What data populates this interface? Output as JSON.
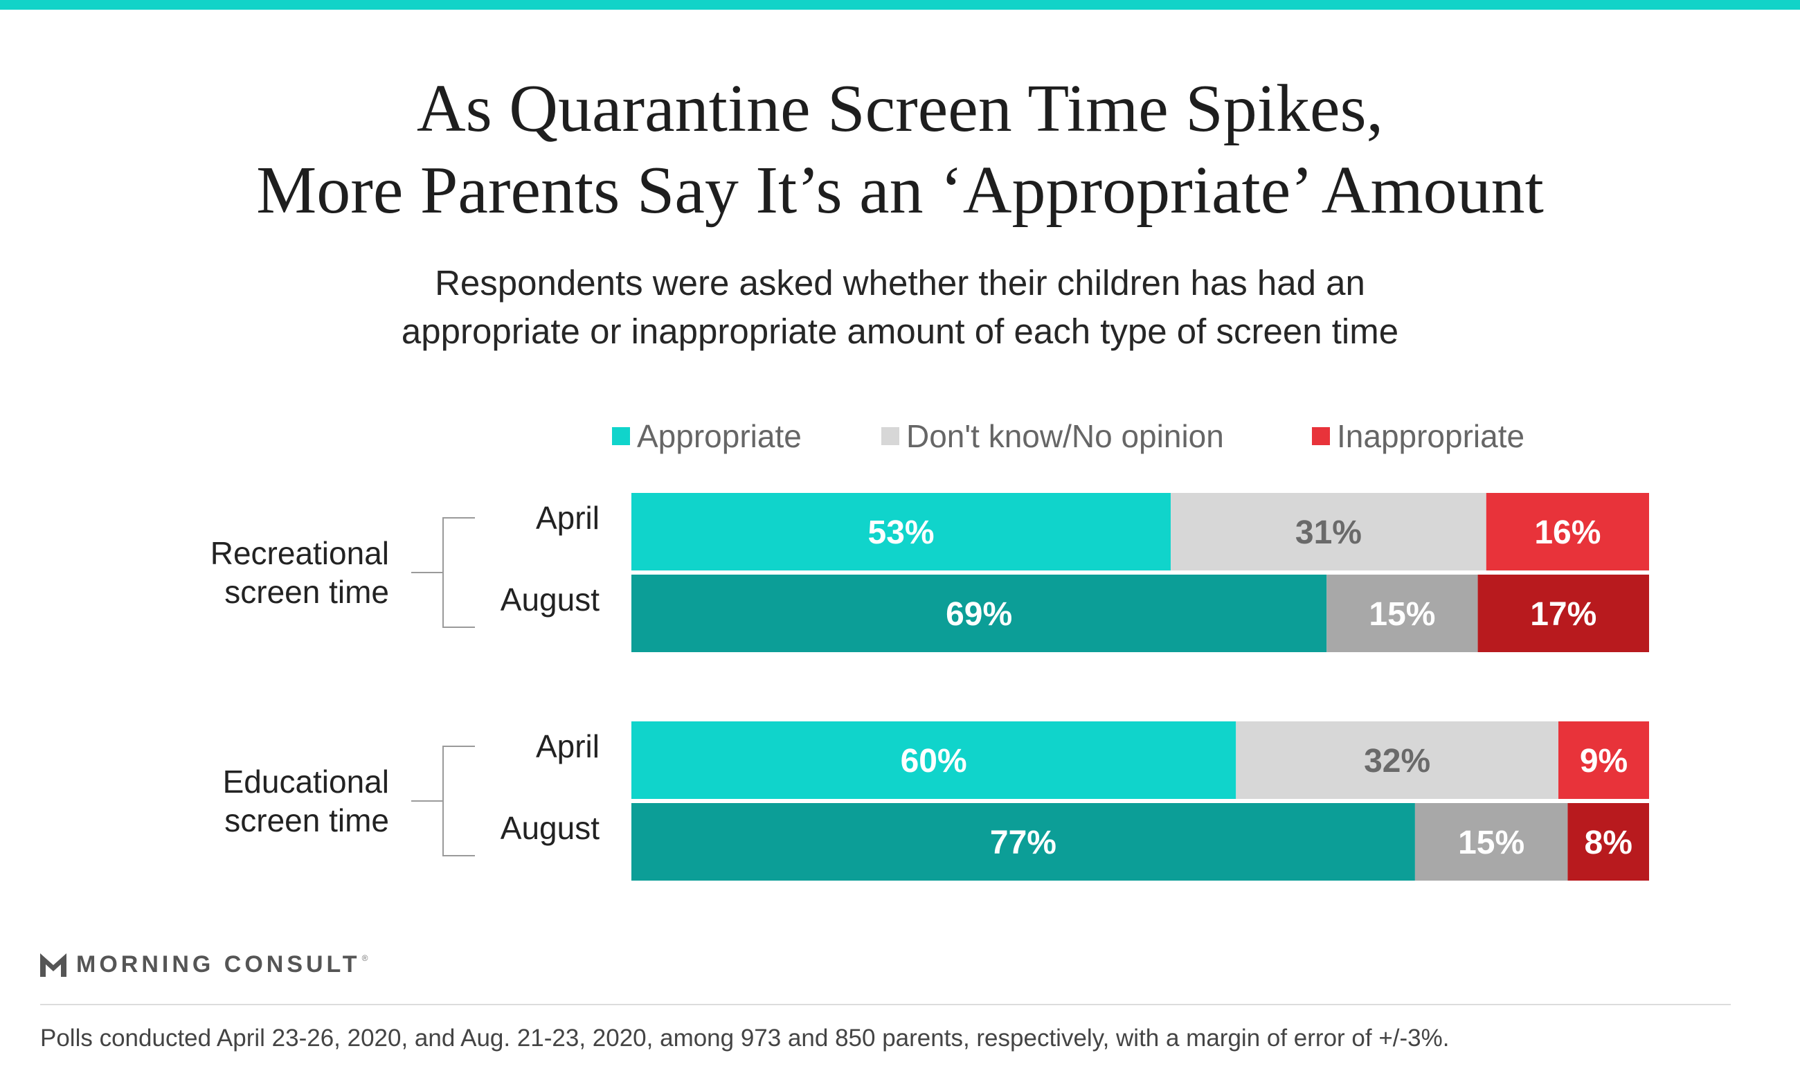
{
  "title": {
    "line1": "As Quarantine Screen Time Spikes,",
    "line2": "More Parents Say It’s an ‘Appropriate’ Amount"
  },
  "subtitle": {
    "line1": "Respondents were asked whether their children has had an",
    "line2": "appropriate or inappropriate amount of each type of screen time"
  },
  "colors": {
    "accent_bar": "#12d3c8",
    "appropriate_april": "#10d4cb",
    "appropriate_august": "#0c9e97",
    "dontknow_april": "#d7d7d7",
    "dontknow_august": "#a8a8a8",
    "inappropriate_april": "#e8333a",
    "inappropriate_august": "#b81a1e",
    "dontknow_april_text": "#6a6a6a"
  },
  "chart_data": {
    "type": "bar",
    "orientation": "horizontal",
    "stacked": true,
    "legend_position": "top",
    "xlim": [
      0,
      100
    ],
    "legend": [
      "Appropriate",
      "Don't know/No opinion",
      "Inappropriate"
    ],
    "groups": [
      {
        "name_lines": [
          "Recreational",
          "screen time"
        ],
        "rows": [
          {
            "label": "April",
            "values": [
              53,
              31,
              16
            ],
            "labels": [
              "53%",
              "31%",
              "16%"
            ]
          },
          {
            "label": "August",
            "values": [
              69,
              15,
              17
            ],
            "labels": [
              "69%",
              "15%",
              "17%"
            ]
          }
        ]
      },
      {
        "name_lines": [
          "Educational",
          "screen time"
        ],
        "rows": [
          {
            "label": "April",
            "values": [
              60,
              32,
              9
            ],
            "labels": [
              "60%",
              "32%",
              "9%"
            ]
          },
          {
            "label": "August",
            "values": [
              77,
              15,
              8
            ],
            "labels": [
              "77%",
              "15%",
              "8%"
            ]
          }
        ]
      }
    ]
  },
  "brand": {
    "name": "MORNING CONSULT",
    "mark": "®"
  },
  "footnote": "Polls conducted April 23-26, 2020, and Aug. 21-23, 2020, among 973 and 850 parents, respectively, with a margin of error of +/-3%."
}
